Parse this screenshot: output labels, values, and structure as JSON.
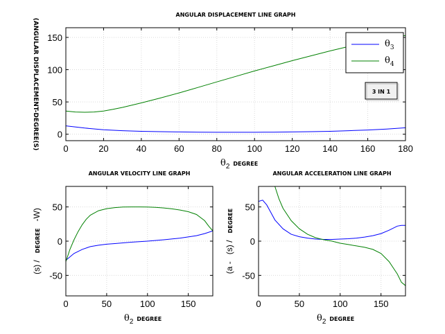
{
  "button": {
    "label": "3 IN 1"
  },
  "chart_data": [
    {
      "type": "line",
      "title": "ANGULAR DISPLACEMENT LINE GRAPH",
      "xlabel_symbol": "θ",
      "xlabel_sub": "2",
      "xlabel_unit": "DEGREE",
      "ylabel": "(ANGULAR DISPLACEMENT-DEGREE(S)",
      "xlim": [
        0,
        180
      ],
      "ylim": [
        -10,
        165
      ],
      "xticks": [
        0,
        20,
        40,
        60,
        80,
        100,
        120,
        140,
        160,
        180
      ],
      "yticks": [
        0,
        50,
        100,
        150
      ],
      "grid": true,
      "legend_position": "top-right",
      "legend": [
        {
          "symbol": "θ",
          "sub": "3",
          "color": "#0000ff"
        },
        {
          "symbol": "θ",
          "sub": "4",
          "color": "#008000"
        }
      ],
      "series": [
        {
          "color": "#0000ff",
          "x": [
            0,
            10,
            20,
            30,
            40,
            50,
            60,
            70,
            80,
            90,
            100,
            110,
            120,
            130,
            140,
            150,
            160,
            170,
            180
          ],
          "y": [
            13,
            9.5,
            7,
            5.5,
            4.5,
            4,
            3.5,
            3.2,
            3,
            3,
            3,
            3.2,
            3.5,
            4,
            4.5,
            5.5,
            6.5,
            8,
            10
          ]
        },
        {
          "color": "#008000",
          "x": [
            0,
            5,
            10,
            15,
            20,
            25,
            30,
            40,
            50,
            60,
            70,
            80,
            90,
            100,
            110,
            120,
            130,
            140,
            150,
            160,
            170,
            175,
            180
          ],
          "y": [
            36,
            34.5,
            34,
            34.5,
            36,
            38.5,
            41.5,
            48.5,
            56,
            64,
            72.5,
            81,
            89.5,
            98,
            106,
            114,
            121.5,
            129,
            136,
            142,
            148,
            151,
            153
          ]
        }
      ]
    },
    {
      "type": "line",
      "title": "ANGULAR VELOCITY LINE GRAPH",
      "xlabel_symbol": "θ",
      "xlabel_sub": "2",
      "xlabel_unit": "DEGREE",
      "ylabel_parts": [
        "(s) /",
        "DEGREE",
        "-W)"
      ],
      "xlim": [
        0,
        180
      ],
      "ylim": [
        -80,
        80
      ],
      "xticks": [
        0,
        50,
        100,
        150
      ],
      "yticks": [
        -50,
        0,
        50
      ],
      "grid": true,
      "series": [
        {
          "color": "#0000ff",
          "x": [
            0,
            10,
            20,
            30,
            40,
            50,
            60,
            80,
            100,
            120,
            140,
            160,
            170,
            180
          ],
          "y": [
            -28,
            -18,
            -12,
            -8,
            -6,
            -4.5,
            -3.5,
            -1.5,
            0,
            2,
            4.5,
            8,
            11,
            15
          ]
        },
        {
          "color": "#008000",
          "x": [
            0,
            5,
            10,
            15,
            20,
            25,
            30,
            40,
            50,
            60,
            70,
            80,
            90,
            100,
            110,
            120,
            130,
            140,
            150,
            160,
            170,
            175,
            180
          ],
          "y": [
            -30,
            -12,
            2,
            14,
            24,
            32,
            38,
            44.5,
            47.5,
            49,
            49.8,
            50,
            50,
            49.8,
            49.3,
            48.5,
            47.2,
            45.5,
            43,
            39,
            30,
            22,
            15
          ]
        }
      ]
    },
    {
      "type": "line",
      "title": "ANGULAR ACCELERATION LINE GRAPH",
      "xlabel_symbol": "θ",
      "xlabel_sub": "2",
      "xlabel_unit": "DEGREE",
      "ylabel_parts": [
        "(a -",
        "(s) /",
        "DEGREE"
      ],
      "xlim": [
        0,
        180
      ],
      "ylim": [
        -80,
        80
      ],
      "xticks": [
        0,
        50,
        100,
        150
      ],
      "yticks": [
        -50,
        0,
        50
      ],
      "grid": true,
      "series": [
        {
          "color": "#0000ff",
          "x": [
            0,
            5,
            10,
            15,
            20,
            30,
            40,
            50,
            60,
            70,
            80,
            90,
            100,
            110,
            120,
            130,
            140,
            150,
            160,
            170,
            175,
            180
          ],
          "y": [
            58,
            60,
            53,
            42,
            31,
            18,
            10,
            6.5,
            4.5,
            3,
            2.5,
            2.5,
            3,
            3.5,
            4.5,
            6,
            8,
            11,
            16,
            22,
            23,
            23
          ]
        },
        {
          "color": "#008000",
          "x": [
            20,
            25,
            30,
            40,
            50,
            60,
            70,
            80,
            90,
            100,
            110,
            120,
            130,
            140,
            150,
            160,
            170,
            175,
            180
          ],
          "y": [
            80,
            62,
            48,
            30,
            18,
            10,
            5,
            2,
            0,
            -3,
            -5,
            -7,
            -9,
            -12,
            -18,
            -30,
            -48,
            -60,
            -65
          ]
        }
      ]
    }
  ]
}
